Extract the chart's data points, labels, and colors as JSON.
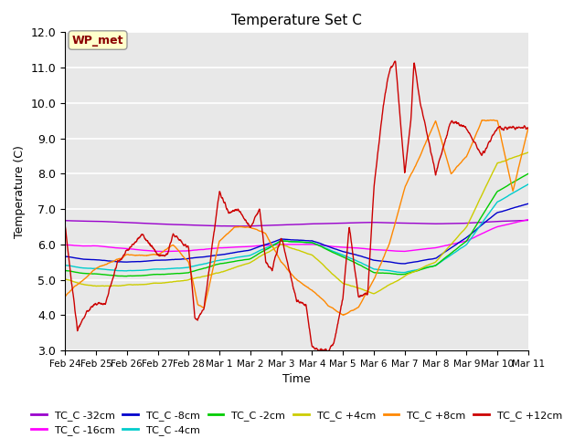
{
  "title": "Temperature Set C",
  "xlabel": "Time",
  "ylabel": "Temperature (C)",
  "ylim": [
    3.0,
    12.0
  ],
  "yticks": [
    3.0,
    4.0,
    5.0,
    6.0,
    7.0,
    8.0,
    9.0,
    10.0,
    11.0,
    12.0
  ],
  "background_color": "#e8e8e8",
  "plot_bg": "#e8e8e8",
  "annotation_text": "WP_met",
  "annotation_color": "#8b0000",
  "annotation_bg": "#ffffcc",
  "series": [
    {
      "label": "TC_C -32cm",
      "color": "#9900cc"
    },
    {
      "label": "TC_C -16cm",
      "color": "#ff00ff"
    },
    {
      "label": "TC_C -8cm",
      "color": "#0000cc"
    },
    {
      "label": "TC_C -4cm",
      "color": "#00cccc"
    },
    {
      "label": "TC_C -2cm",
      "color": "#00cc00"
    },
    {
      "label": "TC_C +4cm",
      "color": "#cccc00"
    },
    {
      "label": "TC_C +8cm",
      "color": "#ff8800"
    },
    {
      "label": "TC_C +12cm",
      "color": "#cc0000"
    }
  ],
  "xtick_labels": [
    "Feb 24",
    "Feb 25",
    "Feb 26",
    "Feb 27",
    "Feb 28",
    "Mar 1",
    "Mar 2",
    "Mar 3",
    "Mar 4",
    "Mar 5",
    "Mar 6",
    "Mar 7",
    "Mar 8",
    "Mar 9",
    "Mar 10",
    "Mar 11"
  ],
  "legend_ncol": 6
}
